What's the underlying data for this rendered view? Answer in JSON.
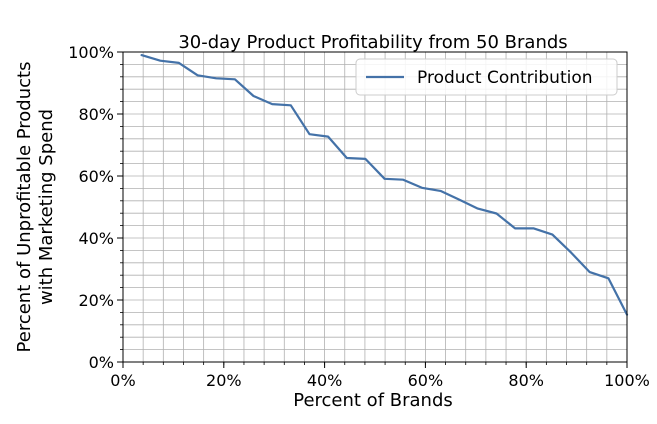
{
  "chart_data": {
    "type": "line",
    "title": "30-day Product Profitability from 50 Brands",
    "xlabel": "Percent of Brands",
    "ylabel": [
      "Percent of Unprofitable Products",
      "with Marketing Spend"
    ],
    "xlim": [
      0,
      100
    ],
    "ylim": [
      0,
      100
    ],
    "x_ticks": [
      0,
      20,
      40,
      60,
      80,
      100
    ],
    "x_tick_labels": [
      "0%",
      "20%",
      "40%",
      "60%",
      "80%",
      "100%"
    ],
    "y_ticks": [
      0,
      20,
      40,
      60,
      80,
      100
    ],
    "y_tick_labels": [
      "0%",
      "20%",
      "40%",
      "60%",
      "80%",
      "100%"
    ],
    "grid": true,
    "legend_position": "upper-right",
    "series": [
      {
        "name": "Product Contribution",
        "color": "#4472a8",
        "x": [
          3.7,
          7.4,
          11.1,
          14.8,
          18.5,
          22.2,
          25.9,
          29.6,
          33.3,
          37.0,
          40.7,
          44.4,
          48.1,
          51.9,
          55.6,
          59.3,
          63.0,
          66.7,
          70.4,
          74.1,
          77.8,
          81.5,
          85.2,
          88.9,
          92.6,
          96.3,
          100.0
        ],
        "y": [
          99.0,
          97.2,
          96.5,
          92.5,
          91.5,
          91.2,
          85.8,
          83.2,
          82.8,
          73.5,
          72.7,
          65.8,
          65.5,
          59.1,
          58.8,
          56.2,
          55.2,
          52.4,
          49.5,
          47.9,
          43.1,
          43.1,
          41.1,
          35.3,
          29.0,
          27.0,
          15.3
        ]
      }
    ]
  }
}
